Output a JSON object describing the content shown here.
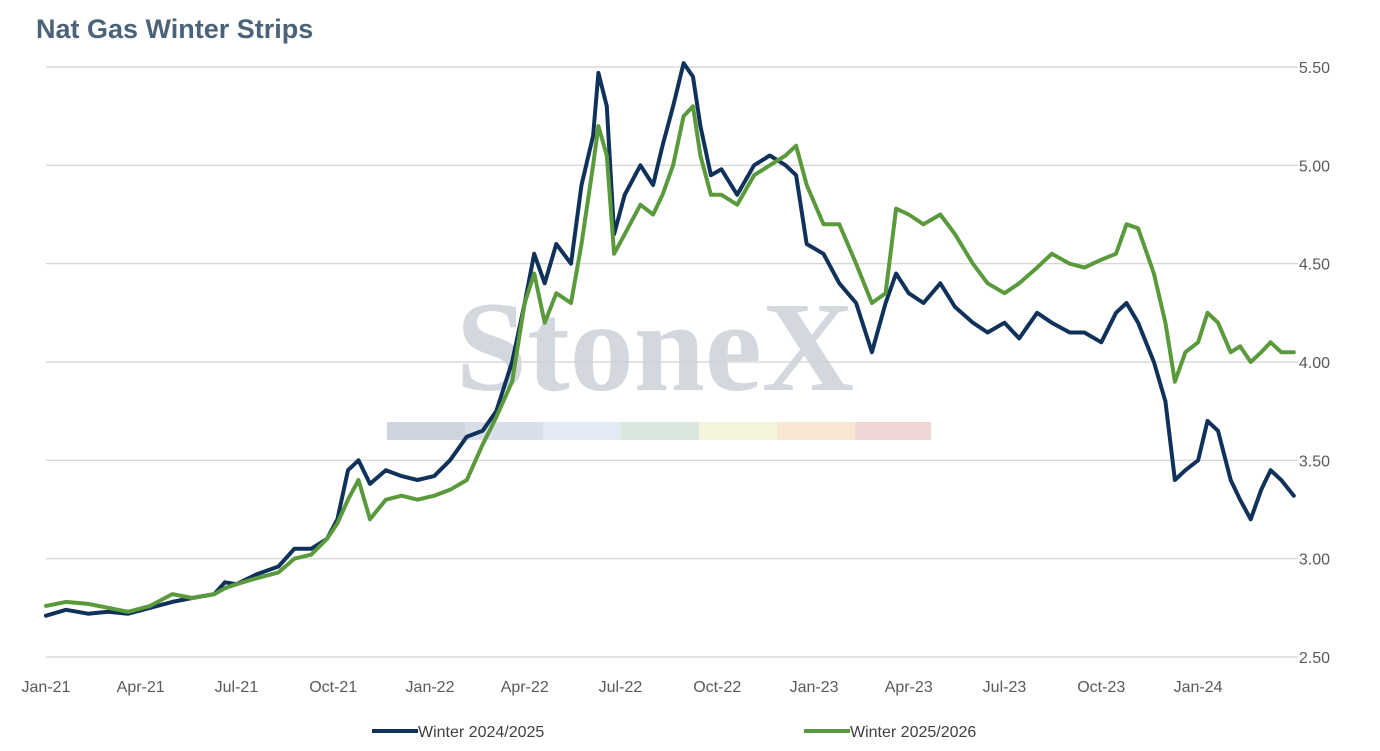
{
  "chart_data": {
    "type": "line",
    "title": "Nat Gas Winter Strips",
    "xlabel": "",
    "ylabel": "",
    "x_tick_labels": [
      "Jan-21",
      "Apr-21",
      "Jul-21",
      "Oct-21",
      "Jan-22",
      "Apr-22",
      "Jul-22",
      "Oct-22",
      "Jan-23",
      "Apr-23",
      "Jul-23",
      "Oct-23",
      "Jan-24"
    ],
    "y_tick_labels": [
      "2.50",
      "3.00",
      "3.50",
      "4.00",
      "4.50",
      "5.00",
      "5.50"
    ],
    "ylim": [
      2.5,
      5.5
    ],
    "xlim": [
      "2021-01-01",
      "2024-04-05"
    ],
    "grid": "horizontal",
    "legend": "bottom",
    "watermark": "StoneX",
    "series": [
      {
        "name": "Winter 2024/2025",
        "color": "#10325a",
        "points": [
          [
            "2021-01-01",
            2.71
          ],
          [
            "2021-01-20",
            2.74
          ],
          [
            "2021-02-10",
            2.72
          ],
          [
            "2021-03-01",
            2.73
          ],
          [
            "2021-03-20",
            2.72
          ],
          [
            "2021-04-10",
            2.75
          ],
          [
            "2021-05-01",
            2.78
          ],
          [
            "2021-05-20",
            2.8
          ],
          [
            "2021-06-10",
            2.82
          ],
          [
            "2021-06-20",
            2.88
          ],
          [
            "2021-07-01",
            2.87
          ],
          [
            "2021-07-20",
            2.92
          ],
          [
            "2021-08-10",
            2.96
          ],
          [
            "2021-08-25",
            3.05
          ],
          [
            "2021-09-10",
            3.05
          ],
          [
            "2021-09-25",
            3.1
          ],
          [
            "2021-10-05",
            3.2
          ],
          [
            "2021-10-15",
            3.45
          ],
          [
            "2021-10-25",
            3.5
          ],
          [
            "2021-11-05",
            3.38
          ],
          [
            "2021-11-20",
            3.45
          ],
          [
            "2021-12-05",
            3.42
          ],
          [
            "2021-12-20",
            3.4
          ],
          [
            "2022-01-05",
            3.42
          ],
          [
            "2022-01-20",
            3.5
          ],
          [
            "2022-02-05",
            3.62
          ],
          [
            "2022-02-20",
            3.65
          ],
          [
            "2022-03-05",
            3.75
          ],
          [
            "2022-03-20",
            4.0
          ],
          [
            "2022-04-01",
            4.3
          ],
          [
            "2022-04-10",
            4.55
          ],
          [
            "2022-04-20",
            4.4
          ],
          [
            "2022-05-01",
            4.6
          ],
          [
            "2022-05-15",
            4.5
          ],
          [
            "2022-05-25",
            4.9
          ],
          [
            "2022-06-05",
            5.15
          ],
          [
            "2022-06-10",
            5.47
          ],
          [
            "2022-06-18",
            5.3
          ],
          [
            "2022-06-25",
            4.65
          ],
          [
            "2022-07-05",
            4.85
          ],
          [
            "2022-07-20",
            5.0
          ],
          [
            "2022-08-01",
            4.9
          ],
          [
            "2022-08-10",
            5.1
          ],
          [
            "2022-08-20",
            5.3
          ],
          [
            "2022-08-30",
            5.52
          ],
          [
            "2022-09-08",
            5.45
          ],
          [
            "2022-09-15",
            5.2
          ],
          [
            "2022-09-25",
            4.95
          ],
          [
            "2022-10-05",
            4.98
          ],
          [
            "2022-10-20",
            4.85
          ],
          [
            "2022-11-05",
            5.0
          ],
          [
            "2022-11-20",
            5.05
          ],
          [
            "2022-12-05",
            5.0
          ],
          [
            "2022-12-15",
            4.95
          ],
          [
            "2022-12-25",
            4.6
          ],
          [
            "2023-01-10",
            4.55
          ],
          [
            "2023-01-25",
            4.4
          ],
          [
            "2023-02-10",
            4.3
          ],
          [
            "2023-02-25",
            4.05
          ],
          [
            "2023-03-10",
            4.3
          ],
          [
            "2023-03-20",
            4.45
          ],
          [
            "2023-04-01",
            4.35
          ],
          [
            "2023-04-15",
            4.3
          ],
          [
            "2023-05-01",
            4.4
          ],
          [
            "2023-05-15",
            4.28
          ],
          [
            "2023-06-01",
            4.2
          ],
          [
            "2023-06-15",
            4.15
          ],
          [
            "2023-07-01",
            4.2
          ],
          [
            "2023-07-15",
            4.12
          ],
          [
            "2023-08-01",
            4.25
          ],
          [
            "2023-08-15",
            4.2
          ],
          [
            "2023-09-01",
            4.15
          ],
          [
            "2023-09-15",
            4.15
          ],
          [
            "2023-10-01",
            4.1
          ],
          [
            "2023-10-15",
            4.25
          ],
          [
            "2023-10-25",
            4.3
          ],
          [
            "2023-11-05",
            4.2
          ],
          [
            "2023-11-20",
            4.0
          ],
          [
            "2023-12-01",
            3.8
          ],
          [
            "2023-12-10",
            3.4
          ],
          [
            "2023-12-20",
            3.45
          ],
          [
            "2024-01-01",
            3.5
          ],
          [
            "2024-01-10",
            3.7
          ],
          [
            "2024-01-20",
            3.65
          ],
          [
            "2024-02-01",
            3.4
          ],
          [
            "2024-02-10",
            3.3
          ],
          [
            "2024-02-20",
            3.2
          ],
          [
            "2024-03-01",
            3.35
          ],
          [
            "2024-03-10",
            3.45
          ],
          [
            "2024-03-20",
            3.4
          ],
          [
            "2024-04-01",
            3.32
          ]
        ]
      },
      {
        "name": "Winter 2025/2026",
        "color": "#5a9a3c",
        "points": [
          [
            "2021-01-01",
            2.76
          ],
          [
            "2021-01-20",
            2.78
          ],
          [
            "2021-02-10",
            2.77
          ],
          [
            "2021-03-01",
            2.75
          ],
          [
            "2021-03-20",
            2.73
          ],
          [
            "2021-04-10",
            2.76
          ],
          [
            "2021-05-01",
            2.82
          ],
          [
            "2021-05-20",
            2.8
          ],
          [
            "2021-06-10",
            2.82
          ],
          [
            "2021-06-20",
            2.85
          ],
          [
            "2021-07-01",
            2.87
          ],
          [
            "2021-07-20",
            2.9
          ],
          [
            "2021-08-10",
            2.93
          ],
          [
            "2021-08-25",
            3.0
          ],
          [
            "2021-09-10",
            3.02
          ],
          [
            "2021-09-25",
            3.1
          ],
          [
            "2021-10-05",
            3.18
          ],
          [
            "2021-10-15",
            3.3
          ],
          [
            "2021-10-25",
            3.4
          ],
          [
            "2021-11-05",
            3.2
          ],
          [
            "2021-11-20",
            3.3
          ],
          [
            "2021-12-05",
            3.32
          ],
          [
            "2021-12-20",
            3.3
          ],
          [
            "2022-01-05",
            3.32
          ],
          [
            "2022-01-20",
            3.35
          ],
          [
            "2022-02-05",
            3.4
          ],
          [
            "2022-02-20",
            3.58
          ],
          [
            "2022-03-05",
            3.72
          ],
          [
            "2022-03-20",
            3.9
          ],
          [
            "2022-04-01",
            4.3
          ],
          [
            "2022-04-10",
            4.45
          ],
          [
            "2022-04-20",
            4.2
          ],
          [
            "2022-05-01",
            4.35
          ],
          [
            "2022-05-15",
            4.3
          ],
          [
            "2022-05-25",
            4.6
          ],
          [
            "2022-06-05",
            5.0
          ],
          [
            "2022-06-10",
            5.2
          ],
          [
            "2022-06-18",
            5.05
          ],
          [
            "2022-06-25",
            4.55
          ],
          [
            "2022-07-05",
            4.65
          ],
          [
            "2022-07-20",
            4.8
          ],
          [
            "2022-08-01",
            4.75
          ],
          [
            "2022-08-10",
            4.85
          ],
          [
            "2022-08-20",
            5.0
          ],
          [
            "2022-08-30",
            5.25
          ],
          [
            "2022-09-08",
            5.3
          ],
          [
            "2022-09-15",
            5.05
          ],
          [
            "2022-09-25",
            4.85
          ],
          [
            "2022-10-05",
            4.85
          ],
          [
            "2022-10-20",
            4.8
          ],
          [
            "2022-11-05",
            4.95
          ],
          [
            "2022-11-20",
            5.0
          ],
          [
            "2022-12-05",
            5.05
          ],
          [
            "2022-12-15",
            5.1
          ],
          [
            "2022-12-25",
            4.9
          ],
          [
            "2023-01-10",
            4.7
          ],
          [
            "2023-01-25",
            4.7
          ],
          [
            "2023-02-10",
            4.5
          ],
          [
            "2023-02-25",
            4.3
          ],
          [
            "2023-03-10",
            4.35
          ],
          [
            "2023-03-20",
            4.78
          ],
          [
            "2023-04-01",
            4.75
          ],
          [
            "2023-04-15",
            4.7
          ],
          [
            "2023-05-01",
            4.75
          ],
          [
            "2023-05-15",
            4.65
          ],
          [
            "2023-06-01",
            4.5
          ],
          [
            "2023-06-15",
            4.4
          ],
          [
            "2023-07-01",
            4.35
          ],
          [
            "2023-07-15",
            4.4
          ],
          [
            "2023-08-01",
            4.48
          ],
          [
            "2023-08-15",
            4.55
          ],
          [
            "2023-09-01",
            4.5
          ],
          [
            "2023-09-15",
            4.48
          ],
          [
            "2023-10-01",
            4.52
          ],
          [
            "2023-10-15",
            4.55
          ],
          [
            "2023-10-25",
            4.7
          ],
          [
            "2023-11-05",
            4.68
          ],
          [
            "2023-11-20",
            4.45
          ],
          [
            "2023-12-01",
            4.2
          ],
          [
            "2023-12-10",
            3.9
          ],
          [
            "2023-12-20",
            4.05
          ],
          [
            "2024-01-01",
            4.1
          ],
          [
            "2024-01-10",
            4.25
          ],
          [
            "2024-01-20",
            4.2
          ],
          [
            "2024-02-01",
            4.05
          ],
          [
            "2024-02-10",
            4.08
          ],
          [
            "2024-02-20",
            4.0
          ],
          [
            "2024-03-01",
            4.05
          ],
          [
            "2024-03-10",
            4.1
          ],
          [
            "2024-03-20",
            4.05
          ],
          [
            "2024-04-01",
            4.05
          ]
        ]
      }
    ]
  }
}
